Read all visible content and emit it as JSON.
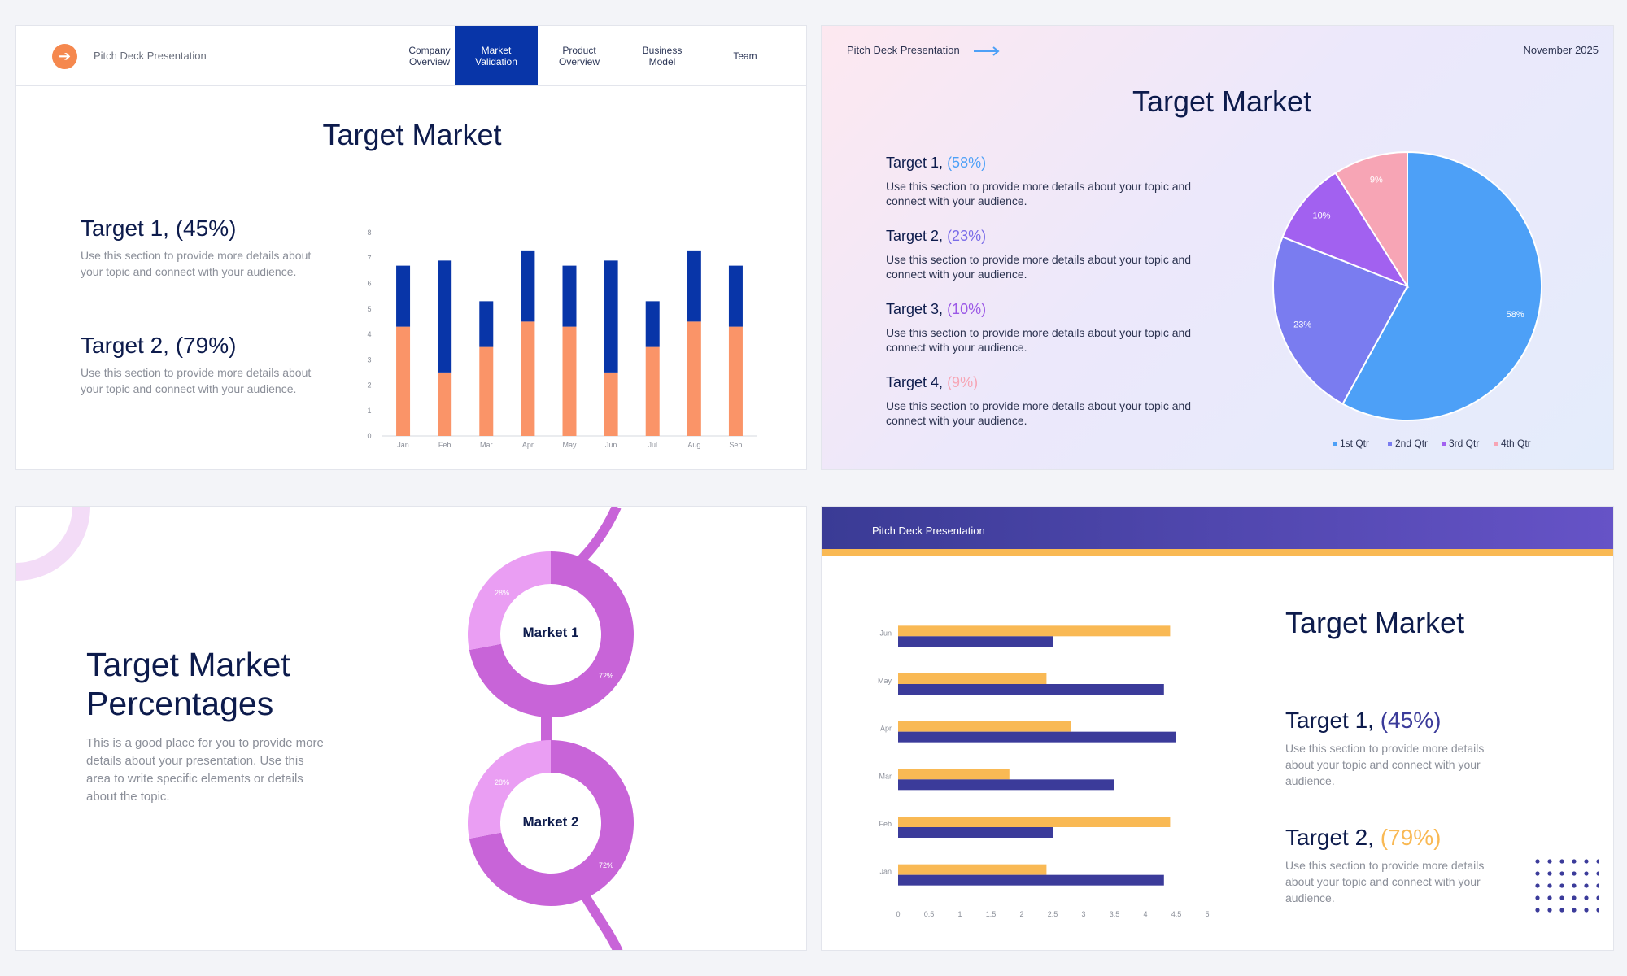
{
  "slide1": {
    "brand": "Pitch Deck Presentation",
    "nav": [
      {
        "label": "Company\nOverview",
        "active": false
      },
      {
        "label": "Market\nValidation",
        "active": true
      },
      {
        "label": "Product\nOverview",
        "active": false
      },
      {
        "label": "Business\nModel",
        "active": false
      },
      {
        "label": "Team",
        "active": false
      }
    ],
    "title": "Target Market",
    "targets": [
      {
        "heading": "Target 1, (45%)",
        "text": "Use this section to provide more details about your topic and connect with your audience."
      },
      {
        "heading": "Target 2, (79%)",
        "text": "Use this section to provide more details about your topic and connect with your audience."
      }
    ]
  },
  "slide2": {
    "brand": "Pitch Deck Presentation",
    "date": "November 2025",
    "title": "Target Market",
    "targets": [
      {
        "name": "Target 1,",
        "pct": "(58%)",
        "color": "#4da0f7",
        "text": "Use this section to provide more details about your topic and connect with your audience."
      },
      {
        "name": "Target 2,",
        "pct": "(23%)",
        "color": "#7a6ce8",
        "text": "Use this section to provide more details about your topic and connect with your audience."
      },
      {
        "name": "Target 3,",
        "pct": "(10%)",
        "color": "#9b58e6",
        "text": "Use this section to provide more details about your topic and connect with your audience."
      },
      {
        "name": "Target 4,",
        "pct": "(9%)",
        "color": "#f7a5b5",
        "text": "Use this section to provide more details about your topic and connect with your audience."
      }
    ]
  },
  "slide3": {
    "title": "Target Market Percentages",
    "text": "This is a good place for you to provide more details about your presentation. Use this area to write specific elements or details about the topic.",
    "markets": [
      {
        "label": "Market 1",
        "small_label": "28%",
        "large_label": "72%"
      },
      {
        "label": "Market 2",
        "small_label": "28%",
        "large_label": "72%"
      }
    ]
  },
  "slide4": {
    "brand": "Pitch Deck Presentation",
    "title": "Target Market",
    "targets": [
      {
        "name": "Target 1,",
        "pct": "(45%)",
        "color": "#3b3b9a",
        "text": "Use this section to provide more details about your topic and connect with your audience."
      },
      {
        "name": "Target 2,",
        "pct": "(79%)",
        "color": "#f9b954",
        "text": "Use this section to provide more details about your topic and connect with your audience."
      }
    ]
  },
  "chart_data": [
    {
      "type": "bar",
      "stacked": true,
      "categories": [
        "Jan",
        "Feb",
        "Mar",
        "Apr",
        "May",
        "Jun",
        "Jul",
        "Aug",
        "Sep"
      ],
      "series": [
        {
          "values": [
            4.3,
            2.5,
            3.5,
            4.5,
            4.3,
            2.5,
            3.5,
            4.5,
            4.3
          ],
          "color": "#fa9468"
        },
        {
          "values": [
            2.4,
            4.4,
            1.8,
            2.8,
            2.4,
            4.4,
            1.8,
            2.8,
            2.4
          ],
          "color": "#0835a8"
        }
      ],
      "ylim": [
        0,
        8
      ],
      "yticks": [
        "0",
        "1",
        "2",
        "3",
        "4",
        "5",
        "6",
        "7",
        "8"
      ]
    },
    {
      "type": "pie",
      "labels": [
        "1st Qtr",
        "2nd Qtr",
        "3rd Qtr",
        "4th Qtr"
      ],
      "values": [
        58,
        23,
        10,
        9
      ],
      "value_labels": [
        "58%",
        "23%",
        "10%",
        "9%"
      ],
      "colors": [
        "#4da0f7",
        "#7a7cf0",
        "#a261f0",
        "#f7a5b5"
      ],
      "legend": "bottom"
    },
    {
      "type": "pie",
      "variant": "donut",
      "values": [
        28,
        72
      ],
      "colors": [
        "#ea9ef3",
        "#c864d8"
      ]
    },
    {
      "type": "pie",
      "variant": "donut",
      "values": [
        28,
        72
      ],
      "colors": [
        "#ea9ef3",
        "#c864d8"
      ]
    },
    {
      "type": "bar",
      "orientation": "horizontal",
      "categories": [
        "Jan",
        "Feb",
        "Mar",
        "Apr",
        "May",
        "Jun"
      ],
      "series": [
        {
          "values": [
            4.3,
            2.5,
            3.5,
            4.5,
            4.3,
            2.5
          ],
          "color": "#3b3b9a"
        },
        {
          "values": [
            2.4,
            4.4,
            1.8,
            2.8,
            2.4,
            4.4
          ],
          "color": "#f9b954"
        }
      ],
      "xlim": [
        0,
        5
      ],
      "xticks": [
        "0",
        "0.5",
        "1",
        "1.5",
        "2",
        "2.5",
        "3",
        "3.5",
        "4",
        "4.5",
        "5"
      ]
    }
  ]
}
